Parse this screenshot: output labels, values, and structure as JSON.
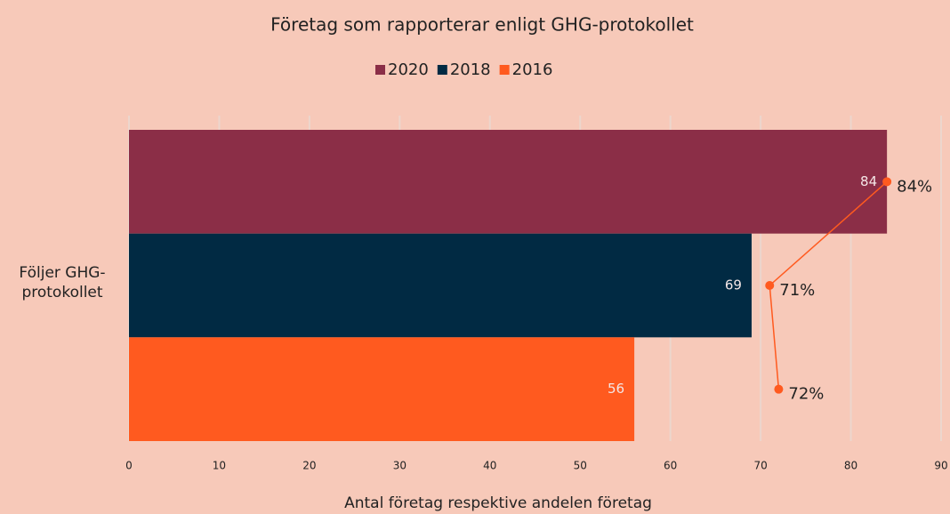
{
  "chart_data": {
    "type": "bar",
    "title": "Företag som rapporterar enligt GHG-protokollet",
    "x_axis_label": "Antal företag respektive andelen företag",
    "categories": [
      "Följer GHG-protokollet"
    ],
    "series": [
      {
        "name": "2020",
        "color": "#8b2e47",
        "values": [
          84
        ]
      },
      {
        "name": "2018",
        "color": "#012a43",
        "values": [
          69
        ]
      },
      {
        "name": "2016",
        "color": "#ff5a1f",
        "values": [
          56
        ]
      }
    ],
    "percent_line": {
      "color": "#ff5a1f",
      "values": [
        84,
        71,
        72
      ],
      "value_labels": [
        "84%",
        "71%",
        "72%"
      ]
    },
    "xlim": [
      0,
      90
    ],
    "xticks": [
      0,
      10,
      20,
      30,
      40,
      50,
      60,
      70,
      80,
      90
    ],
    "grid": true
  }
}
